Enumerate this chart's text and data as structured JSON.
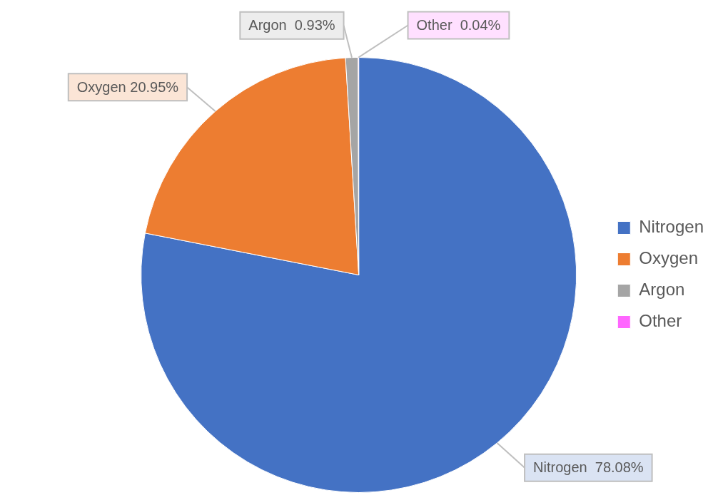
{
  "chart_data": {
    "type": "pie",
    "categories": [
      "Nitrogen",
      "Oxygen",
      "Argon",
      "Other"
    ],
    "values": [
      78.08,
      20.95,
      0.93,
      0.04
    ],
    "colors": [
      "#4472c4",
      "#ed7d31",
      "#a5a5a5",
      "#ff66ff"
    ],
    "value_labels": [
      "Nitrogen  78.08%",
      "Oxygen 20.95%",
      "Argon  0.93%",
      "Other  0.04%"
    ],
    "legend": "right"
  }
}
